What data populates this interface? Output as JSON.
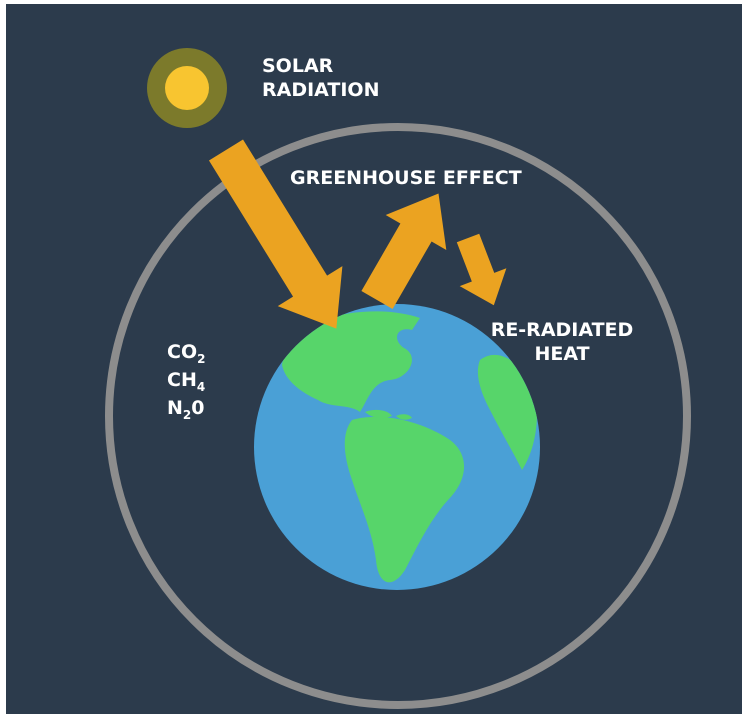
{
  "labels": {
    "solar": [
      "SOLAR",
      "RADIATION"
    ],
    "greenhouse": "GREENHOUSE EFFECT",
    "reradiated": [
      "RE-RADIATED",
      "HEAT"
    ]
  },
  "gases": [
    {
      "base": "CO",
      "sub": "2"
    },
    {
      "base": "CH",
      "sub": "4"
    },
    {
      "base": "N",
      "sub": "2",
      "tail": "0"
    }
  ]
}
